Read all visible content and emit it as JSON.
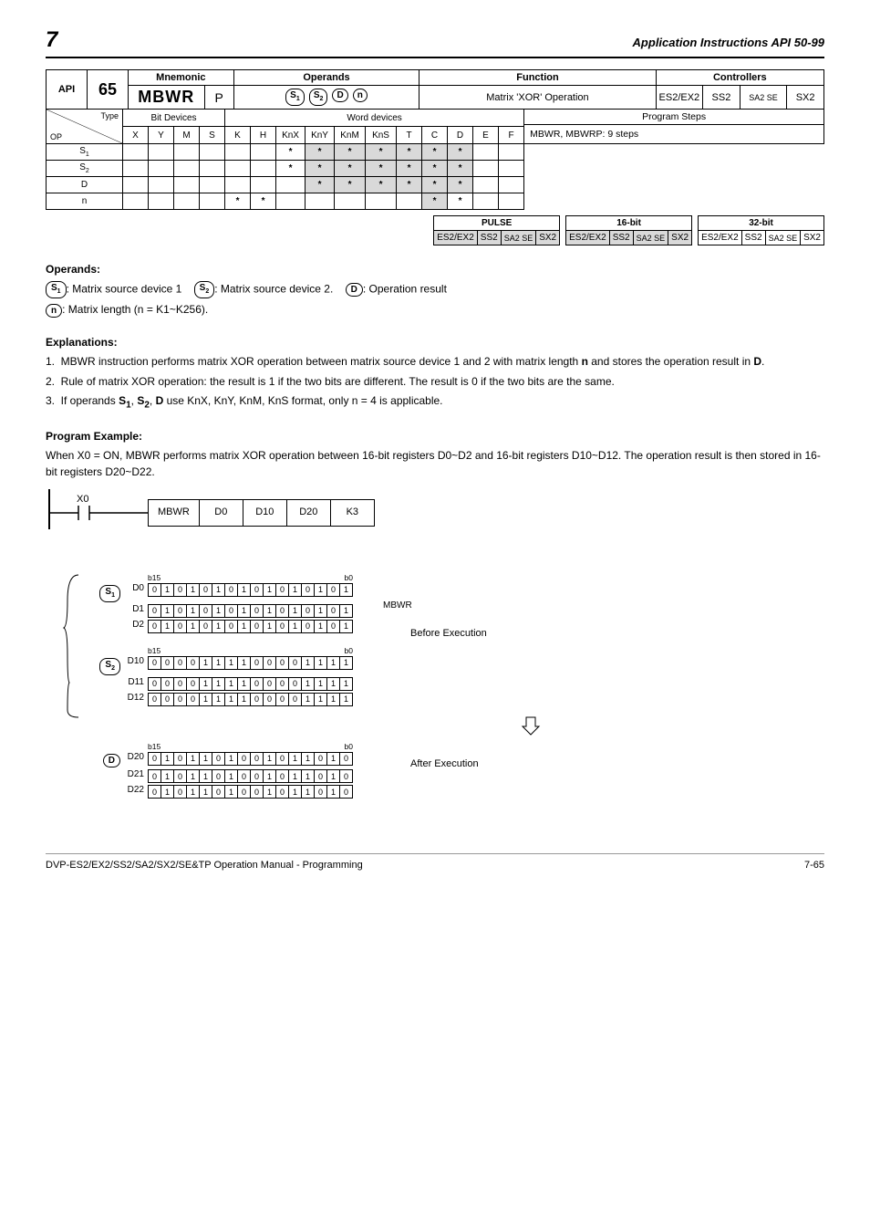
{
  "header": {
    "chapter_num": "7",
    "chapter_title": "Application Instructions API 50-99"
  },
  "top": {
    "api_label": "API",
    "api_num": "65",
    "mnem_label": "Mnemonic",
    "mnem": "MBWR",
    "mnem_suffix": "P",
    "operands_label": "Operands",
    "func_label": "Function",
    "func_text": "Matrix 'XOR' Operation",
    "ctrl_label": "Controllers",
    "ctrl_cols": [
      "ES2/EX2",
      "SS2",
      "SA2 SE",
      "SX2"
    ]
  },
  "type_table": {
    "diag_top": "Type",
    "diag_bottom": "OP",
    "bit_label": "Bit Devices",
    "word_label": "Word devices",
    "steps_label": "Program Steps",
    "cols": [
      "X",
      "Y",
      "M",
      "S",
      "K",
      "H",
      "KnX",
      "KnY",
      "KnM",
      "KnS",
      "T",
      "C",
      "D",
      "E",
      "F"
    ],
    "rows": [
      {
        "op": "S1",
        "cells": [
          "",
          "",
          "",
          "",
          "",
          "",
          "*",
          "*s",
          "*s",
          "*s",
          "*s",
          "*s",
          "*s",
          "",
          ""
        ]
      },
      {
        "op": "S2",
        "cells": [
          "",
          "",
          "",
          "",
          "",
          "",
          "*",
          "*s",
          "*s",
          "*s",
          "*s",
          "*s",
          "*s",
          "",
          ""
        ]
      },
      {
        "op": "D",
        "cells": [
          "",
          "",
          "",
          "",
          "",
          "",
          "",
          "*s",
          "*s",
          "*s",
          "*s",
          "*s",
          "*s",
          "",
          ""
        ]
      },
      {
        "op": "n",
        "cells": [
          "",
          "",
          "",
          "",
          "*",
          "*",
          "",
          "",
          "",
          "",
          "",
          "*s",
          "*",
          "",
          ""
        ]
      }
    ],
    "steps_text": "MBWR, MBWRP: 9 steps"
  },
  "pulse": {
    "p_label": "PULSE",
    "s16": "16-bit",
    "s32": "32-bit",
    "cols": [
      "ES2/EX2",
      "SS2",
      "SA2 SE",
      "SX2"
    ]
  },
  "operands": {
    "title": "Operands:",
    "s1": "Matrix source device 1",
    "s2": "Matrix source device 2.",
    "d": "Operation result",
    "n": "Matrix length (n = K1~K256)."
  },
  "explanations": {
    "title": "Explanations:",
    "items": [
      "MBWR instruction performs matrix XOR operation between matrix source device 1 and 2 with matrix length n and stores the operation result in D.",
      "Rule of matrix XOR operation: the result is 1 if the two bits are different. The result is 0 if the two bits are the same.",
      "If operands S1, S2, D use KnX, KnY, KnM, KnS format, only n = 4 is applicable."
    ]
  },
  "program": {
    "title": "Program Example:",
    "text": "When X0 = ON, MBWR performs matrix XOR operation between 16-bit registers D0~D2 and 16-bit registers D10~D12. The operation result is then stored in 16-bit registers D20~D22.",
    "ladder": {
      "contact": "X0",
      "cells": [
        "MBWR",
        "D0",
        "D10",
        "D20",
        "K3"
      ]
    }
  },
  "matrix": {
    "b15": "b15",
    "b0": "b0",
    "s1_rows": [
      {
        "label": "D0",
        "bits": [
          "0",
          "1",
          "0",
          "1",
          "0",
          "1",
          "0",
          "1",
          "0",
          "1",
          "0",
          "1",
          "0",
          "1",
          "0",
          "1"
        ]
      },
      {
        "label": "D1",
        "bits": [
          "0",
          "1",
          "0",
          "1",
          "0",
          "1",
          "0",
          "1",
          "0",
          "1",
          "0",
          "1",
          "0",
          "1",
          "0",
          "1"
        ]
      },
      {
        "label": "D2",
        "bits": [
          "0",
          "1",
          "0",
          "1",
          "0",
          "1",
          "0",
          "1",
          "0",
          "1",
          "0",
          "1",
          "0",
          "1",
          "0",
          "1"
        ]
      }
    ],
    "s2_rows": [
      {
        "label": "D10",
        "bits": [
          "0",
          "0",
          "0",
          "0",
          "1",
          "1",
          "1",
          "1",
          "0",
          "0",
          "0",
          "0",
          "1",
          "1",
          "1",
          "1"
        ]
      },
      {
        "label": "D11",
        "bits": [
          "0",
          "0",
          "0",
          "0",
          "1",
          "1",
          "1",
          "1",
          "0",
          "0",
          "0",
          "0",
          "1",
          "1",
          "1",
          "1"
        ]
      },
      {
        "label": "D12",
        "bits": [
          "0",
          "0",
          "0",
          "0",
          "1",
          "1",
          "1",
          "1",
          "0",
          "0",
          "0",
          "0",
          "1",
          "1",
          "1",
          "1"
        ]
      }
    ],
    "d_rows": [
      {
        "label": "D20",
        "bits": [
          "0",
          "1",
          "0",
          "1",
          "1",
          "0",
          "1",
          "0",
          "0",
          "1",
          "0",
          "1",
          "1",
          "0",
          "1",
          "0"
        ]
      },
      {
        "label": "D21",
        "bits": [
          "0",
          "1",
          "0",
          "1",
          "1",
          "0",
          "1",
          "0",
          "0",
          "1",
          "0",
          "1",
          "1",
          "0",
          "1",
          "0"
        ]
      },
      {
        "label": "D22",
        "bits": [
          "0",
          "1",
          "0",
          "1",
          "1",
          "0",
          "1",
          "0",
          "0",
          "1",
          "0",
          "1",
          "1",
          "0",
          "1",
          "0"
        ]
      }
    ],
    "xor_label": "MBWR",
    "before": "Before Execution",
    "after": "After Execution"
  },
  "footer": {
    "left": "DVP-ES2/EX2/SS2/SA2/SX2/SE&TP Operation Manual - Programming",
    "right": "7-65"
  }
}
